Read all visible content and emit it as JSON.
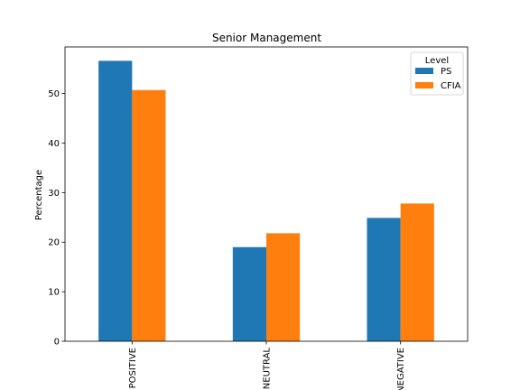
{
  "chart_data": {
    "type": "bar",
    "title": "Senior Management",
    "xlabel": "",
    "ylabel": "Percentage",
    "categories": [
      "POSITIVE",
      "NEUTRAL",
      "NEGATIVE"
    ],
    "series": [
      {
        "name": "PS",
        "color": "#1f77b4",
        "values": [
          56.6,
          19.0,
          24.9
        ]
      },
      {
        "name": "CFIA",
        "color": "#ff7f0e",
        "values": [
          50.7,
          21.8,
          27.8
        ]
      }
    ],
    "ylim": [
      0,
      59.4
    ],
    "yticks": [
      0,
      10,
      20,
      30,
      40,
      50
    ],
    "legend": {
      "title": "Level",
      "placement": "top-right"
    },
    "grid": false
  }
}
